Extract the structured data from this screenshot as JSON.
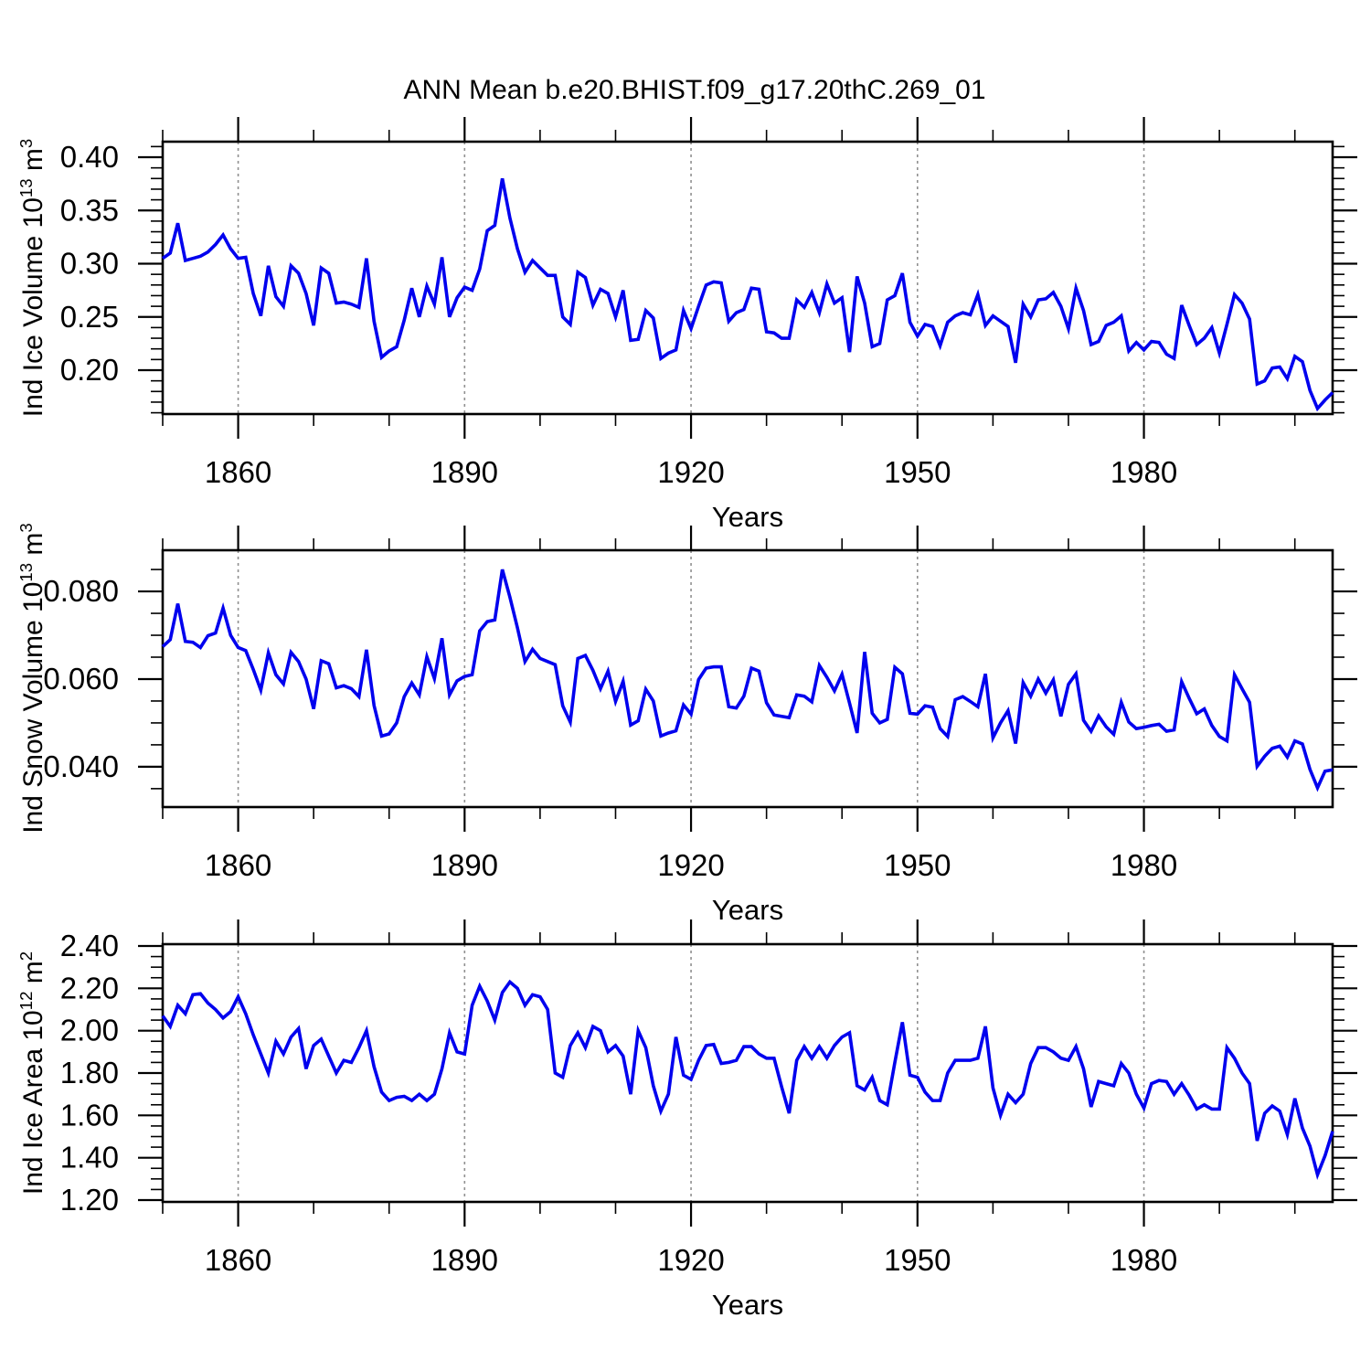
{
  "title": "ANN Mean b.e20.BHIST.f09_g17.20thC.269_01",
  "colors": {
    "line": "#0000EE",
    "grid": "#909090",
    "axis": "#000000",
    "background": "#FFFFFF"
  },
  "x_axis": {
    "label": "Years",
    "start": 1850,
    "end": 2005,
    "step": 1,
    "major_ticks": [
      1860,
      1890,
      1920,
      1950,
      1980
    ],
    "major_tick_labels": [
      "1860",
      "1890",
      "1920",
      "1950",
      "1980"
    ],
    "minor_tick_step": 10,
    "grid_vertical_dashed": true
  },
  "chart_data": [
    {
      "type": "line",
      "name": "ind-ice-volume",
      "ylabel": "Ind Ice Volume 10^13 m^3",
      "ylabel_rich": [
        {
          "t": "Ind Ice Volume 10"
        },
        {
          "s": "13"
        },
        {
          "t": " m"
        },
        {
          "s": "3"
        }
      ],
      "xlabel": "Years",
      "x_start": 1850,
      "x_end": 2005,
      "ylim": [
        0.1588,
        0.4146
      ],
      "y_major_ticks": [
        0.4,
        0.35,
        0.3,
        0.25,
        0.2
      ],
      "y_major_tick_labels": [
        "0.40",
        "0.35",
        "0.30",
        "0.25",
        "0.20"
      ],
      "y_minor_step": 0.01,
      "values": [
        0.305,
        0.31,
        0.338,
        0.303,
        0.305,
        0.307,
        0.311,
        0.318,
        0.327,
        0.314,
        0.305,
        0.306,
        0.272,
        0.251,
        0.298,
        0.269,
        0.26,
        0.298,
        0.291,
        0.272,
        0.242,
        0.296,
        0.291,
        0.263,
        0.264,
        0.262,
        0.259,
        0.305,
        0.246,
        0.212,
        0.218,
        0.222,
        0.247,
        0.277,
        0.25,
        0.279,
        0.262,
        0.306,
        0.25,
        0.268,
        0.278,
        0.275,
        0.295,
        0.331,
        0.336,
        0.38,
        0.343,
        0.314,
        0.292,
        0.303,
        0.296,
        0.289,
        0.289,
        0.25,
        0.243,
        0.292,
        0.287,
        0.261,
        0.276,
        0.272,
        0.25,
        0.275,
        0.228,
        0.229,
        0.256,
        0.249,
        0.211,
        0.216,
        0.219,
        0.256,
        0.239,
        0.26,
        0.28,
        0.283,
        0.282,
        0.246,
        0.254,
        0.257,
        0.277,
        0.276,
        0.236,
        0.235,
        0.23,
        0.23,
        0.266,
        0.259,
        0.273,
        0.254,
        0.281,
        0.263,
        0.268,
        0.217,
        0.288,
        0.263,
        0.222,
        0.225,
        0.266,
        0.27,
        0.291,
        0.245,
        0.232,
        0.243,
        0.241,
        0.223,
        0.245,
        0.251,
        0.254,
        0.252,
        0.271,
        0.242,
        0.251,
        0.246,
        0.241,
        0.207,
        0.262,
        0.25,
        0.266,
        0.267,
        0.273,
        0.26,
        0.239,
        0.277,
        0.256,
        0.224,
        0.227,
        0.242,
        0.245,
        0.251,
        0.218,
        0.226,
        0.219,
        0.227,
        0.226,
        0.215,
        0.211,
        0.261,
        0.242,
        0.224,
        0.23,
        0.24,
        0.216,
        0.243,
        0.271,
        0.263,
        0.248,
        0.187,
        0.19,
        0.202,
        0.203,
        0.192,
        0.213,
        0.208,
        0.181,
        0.164,
        0.172,
        0.179
      ]
    },
    {
      "type": "line",
      "name": "ind-snow-volume",
      "ylabel": "Ind Snow Volume 10^13 m^3",
      "ylabel_rich": [
        {
          "t": "Ind Snow Volume 10"
        },
        {
          "s": "13"
        },
        {
          "t": " m"
        },
        {
          "s": "3"
        }
      ],
      "xlabel": "Years",
      "x_start": 1850,
      "x_end": 2005,
      "ylim": [
        0.0308,
        0.0894
      ],
      "y_major_ticks": [
        0.08,
        0.06,
        0.04
      ],
      "y_major_tick_labels": [
        "0.080",
        "0.060",
        "0.040"
      ],
      "y_minor_step": 0.005,
      "values": [
        0.0674,
        0.069,
        0.0772,
        0.0686,
        0.0684,
        0.0672,
        0.0699,
        0.0705,
        0.0762,
        0.07,
        0.0672,
        0.0665,
        0.0622,
        0.0575,
        0.066,
        0.061,
        0.0589,
        0.0661,
        0.064,
        0.06,
        0.0532,
        0.0642,
        0.0635,
        0.058,
        0.0585,
        0.0578,
        0.056,
        0.0667,
        0.054,
        0.047,
        0.0475,
        0.05,
        0.056,
        0.0591,
        0.0564,
        0.0651,
        0.0601,
        0.0693,
        0.0564,
        0.0596,
        0.0606,
        0.061,
        0.071,
        0.0731,
        0.0735,
        0.085,
        0.0787,
        0.0717,
        0.064,
        0.0668,
        0.0647,
        0.064,
        0.0633,
        0.0539,
        0.0502,
        0.0647,
        0.0654,
        0.062,
        0.0578,
        0.0618,
        0.0549,
        0.0595,
        0.0495,
        0.0505,
        0.0577,
        0.055,
        0.047,
        0.0477,
        0.0482,
        0.0541,
        0.052,
        0.0599,
        0.0625,
        0.0628,
        0.0628,
        0.0537,
        0.0534,
        0.0561,
        0.0625,
        0.0618,
        0.0546,
        0.0518,
        0.0515,
        0.0512,
        0.0564,
        0.0561,
        0.0548,
        0.0631,
        0.0604,
        0.0573,
        0.0611,
        0.0545,
        0.0477,
        0.0662,
        0.0522,
        0.05,
        0.0508,
        0.0627,
        0.0612,
        0.0522,
        0.052,
        0.0539,
        0.0536,
        0.0487,
        0.0469,
        0.0553,
        0.056,
        0.0549,
        0.0537,
        0.0612,
        0.0466,
        0.05,
        0.0528,
        0.0453,
        0.0592,
        0.0561,
        0.06,
        0.0568,
        0.0598,
        0.0515,
        0.0588,
        0.0612,
        0.0506,
        0.0481,
        0.0516,
        0.0491,
        0.0474,
        0.0547,
        0.0502,
        0.0487,
        0.049,
        0.0494,
        0.0497,
        0.0481,
        0.0484,
        0.0594,
        0.0556,
        0.0521,
        0.0532,
        0.0494,
        0.0469,
        0.0459,
        0.061,
        0.0578,
        0.0547,
        0.0401,
        0.0424,
        0.0442,
        0.0447,
        0.0422,
        0.0459,
        0.0452,
        0.0394,
        0.0352,
        0.039,
        0.0393
      ]
    },
    {
      "type": "line",
      "name": "ind-ice-area",
      "ylabel": "Ind Ice Area 10^12 m^2",
      "ylabel_rich": [
        {
          "t": "Ind Ice Area 10"
        },
        {
          "s": "12"
        },
        {
          "t": " m"
        },
        {
          "s": "2"
        }
      ],
      "xlabel": "Years",
      "x_start": 1850,
      "x_end": 2005,
      "ylim": [
        1.1914,
        2.4086
      ],
      "y_major_ticks": [
        2.4,
        2.2,
        2.0,
        1.8,
        1.6,
        1.4,
        1.2
      ],
      "y_major_tick_labels": [
        "2.40",
        "2.20",
        "2.00",
        "1.80",
        "1.60",
        "1.40",
        "1.20"
      ],
      "y_minor_step": 0.05,
      "values": [
        2.07,
        2.02,
        2.12,
        2.08,
        2.17,
        2.175,
        2.13,
        2.1,
        2.06,
        2.09,
        2.16,
        2.08,
        1.98,
        1.89,
        1.8,
        1.95,
        1.89,
        1.97,
        2.01,
        1.82,
        1.93,
        1.96,
        1.88,
        1.8,
        1.86,
        1.85,
        1.92,
        2.0,
        1.83,
        1.71,
        1.67,
        1.685,
        1.69,
        1.67,
        1.7,
        1.67,
        1.7,
        1.82,
        1.99,
        1.9,
        1.89,
        2.12,
        2.21,
        2.14,
        2.05,
        2.18,
        2.23,
        2.2,
        2.12,
        2.17,
        2.16,
        2.1,
        1.8,
        1.78,
        1.93,
        1.99,
        1.92,
        2.02,
        2.0,
        1.9,
        1.93,
        1.88,
        1.7,
        2.0,
        1.92,
        1.74,
        1.62,
        1.7,
        1.97,
        1.79,
        1.77,
        1.86,
        1.93,
        1.935,
        1.845,
        1.85,
        1.86,
        1.925,
        1.925,
        1.89,
        1.87,
        1.87,
        1.735,
        1.61,
        1.86,
        1.925,
        1.87,
        1.925,
        1.87,
        1.93,
        1.97,
        1.99,
        1.74,
        1.72,
        1.78,
        1.67,
        1.65,
        1.85,
        2.04,
        1.79,
        1.78,
        1.71,
        1.67,
        1.67,
        1.8,
        1.86,
        1.86,
        1.86,
        1.87,
        2.02,
        1.73,
        1.6,
        1.7,
        1.66,
        1.7,
        1.845,
        1.92,
        1.92,
        1.9,
        1.87,
        1.86,
        1.925,
        1.82,
        1.64,
        1.76,
        1.75,
        1.74,
        1.845,
        1.8,
        1.7,
        1.635,
        1.75,
        1.765,
        1.76,
        1.7,
        1.75,
        1.695,
        1.63,
        1.65,
        1.63,
        1.63,
        1.92,
        1.87,
        1.8,
        1.75,
        1.48,
        1.61,
        1.645,
        1.62,
        1.51,
        1.68,
        1.54,
        1.455,
        1.32,
        1.41,
        1.525
      ]
    }
  ]
}
